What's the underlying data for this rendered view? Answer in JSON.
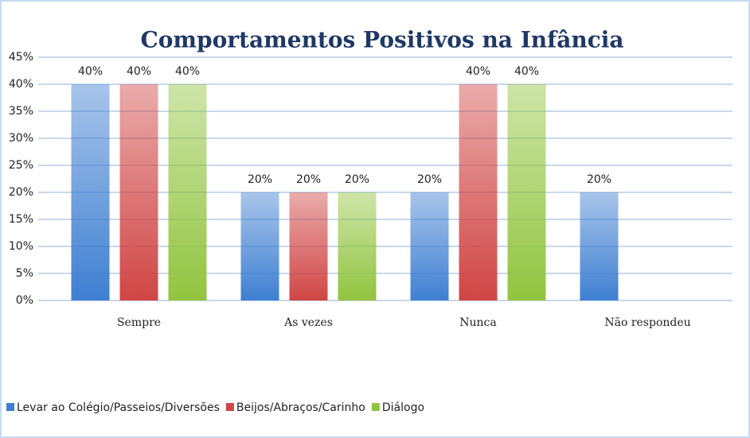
{
  "chart_data": {
    "type": "bar",
    "title": "Comportamentos Positivos na Infância",
    "categories": [
      "Sempre",
      "As vezes",
      "Nunca",
      "Não respondeu"
    ],
    "series": [
      {
        "name": "Levar ao Colégio/Passeios/Diversões",
        "color": "#3f7fd1",
        "values": [
          40,
          20,
          20,
          20
        ],
        "value_labels": [
          "40%",
          "20%",
          "20%",
          "20%"
        ]
      },
      {
        "name": "Beijos/Abraços/Carinho",
        "color": "#d04545",
        "values": [
          40,
          20,
          40,
          null
        ],
        "value_labels": [
          "40%",
          "20%",
          "40%",
          null
        ]
      },
      {
        "name": "Diálogo",
        "color": "#92c440",
        "values": [
          40,
          20,
          40,
          null
        ],
        "value_labels": [
          "40%",
          "20%",
          "40%",
          null
        ]
      }
    ],
    "ylim": [
      0,
      45
    ],
    "yticks": [
      {
        "value": 0,
        "label": "0%"
      },
      {
        "value": 5,
        "label": "5%"
      },
      {
        "value": 10,
        "label": "10%"
      },
      {
        "value": 15,
        "label": "15%"
      },
      {
        "value": 20,
        "label": "20%"
      },
      {
        "value": 25,
        "label": "25%"
      },
      {
        "value": 30,
        "label": "30%"
      },
      {
        "value": 35,
        "label": "35%"
      },
      {
        "value": 40,
        "label": "40%"
      },
      {
        "value": 45,
        "label": "45%"
      }
    ],
    "grid": true,
    "legend": "bottom"
  }
}
